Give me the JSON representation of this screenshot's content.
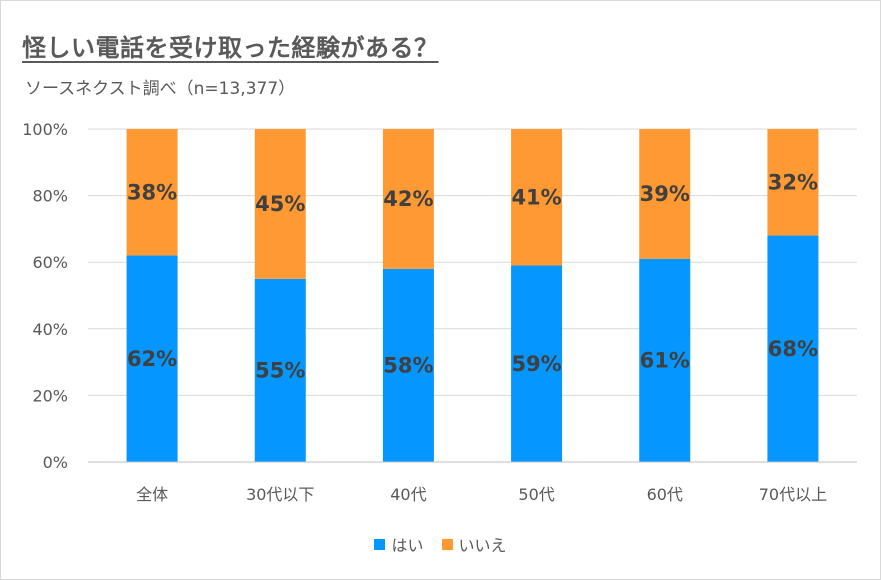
{
  "title": "怪しい電話を受け取った経験がある？",
  "subtitle": "ソースネクスト調べ（n=13,377）",
  "colors": {
    "yes": "#0596ff",
    "no": "#ff9933",
    "grid": "#d9d9d9",
    "text": "#595959"
  },
  "legend": [
    {
      "name": "はい",
      "color_key": "yes"
    },
    {
      "name": "いいえ",
      "color_key": "no"
    }
  ],
  "chart_data": {
    "type": "bar",
    "stacked": true,
    "title": "怪しい電話を受け取った経験がある？",
    "subtitle": "ソースネクスト調べ（n=13,377）",
    "categories": [
      "全体",
      "30代以下",
      "40代",
      "50代",
      "60代",
      "70代以上"
    ],
    "series": [
      {
        "name": "はい",
        "values": [
          62,
          55,
          58,
          59,
          61,
          68
        ],
        "labels": [
          "62%",
          "55%",
          "58%",
          "59%",
          "61%",
          "68%"
        ]
      },
      {
        "name": "いいえ",
        "values": [
          38,
          45,
          42,
          41,
          39,
          32
        ],
        "labels": [
          "38%",
          "45%",
          "42%",
          "41%",
          "39%",
          "32%"
        ]
      }
    ],
    "y_ticks": [
      "0%",
      "20%",
      "40%",
      "60%",
      "80%",
      "100%"
    ],
    "ylim": [
      0,
      100
    ],
    "grid": true,
    "legend_position": "bottom"
  }
}
